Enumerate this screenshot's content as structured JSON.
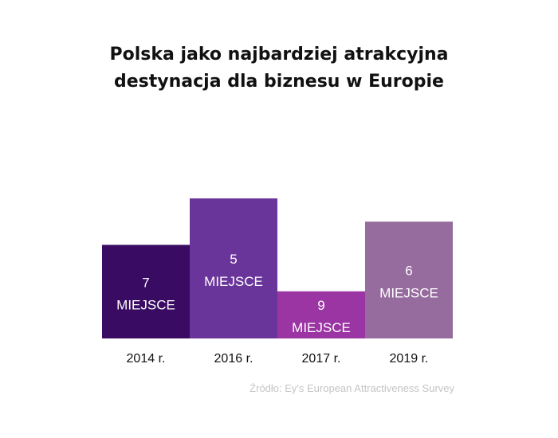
{
  "title_lines": [
    "Polska jako najbardziej atrakcyjna",
    "destynacja dla biznesu w Europie"
  ],
  "source": "Źródło: Ey's European Attractiveness Survey",
  "chart_data": {
    "type": "bar",
    "categories": [
      "2014 r.",
      "2016 r.",
      "2017 r.",
      "2019 r."
    ],
    "values": [
      7,
      5,
      9,
      6
    ],
    "value_label_suffix": "MIEJSCE",
    "bar_colors": [
      "#3a0b63",
      "#6a359a",
      "#9b35a3",
      "#966b9e"
    ],
    "inverted_scale": true,
    "grid": false,
    "title": "",
    "xlabel": "",
    "ylabel": ""
  }
}
